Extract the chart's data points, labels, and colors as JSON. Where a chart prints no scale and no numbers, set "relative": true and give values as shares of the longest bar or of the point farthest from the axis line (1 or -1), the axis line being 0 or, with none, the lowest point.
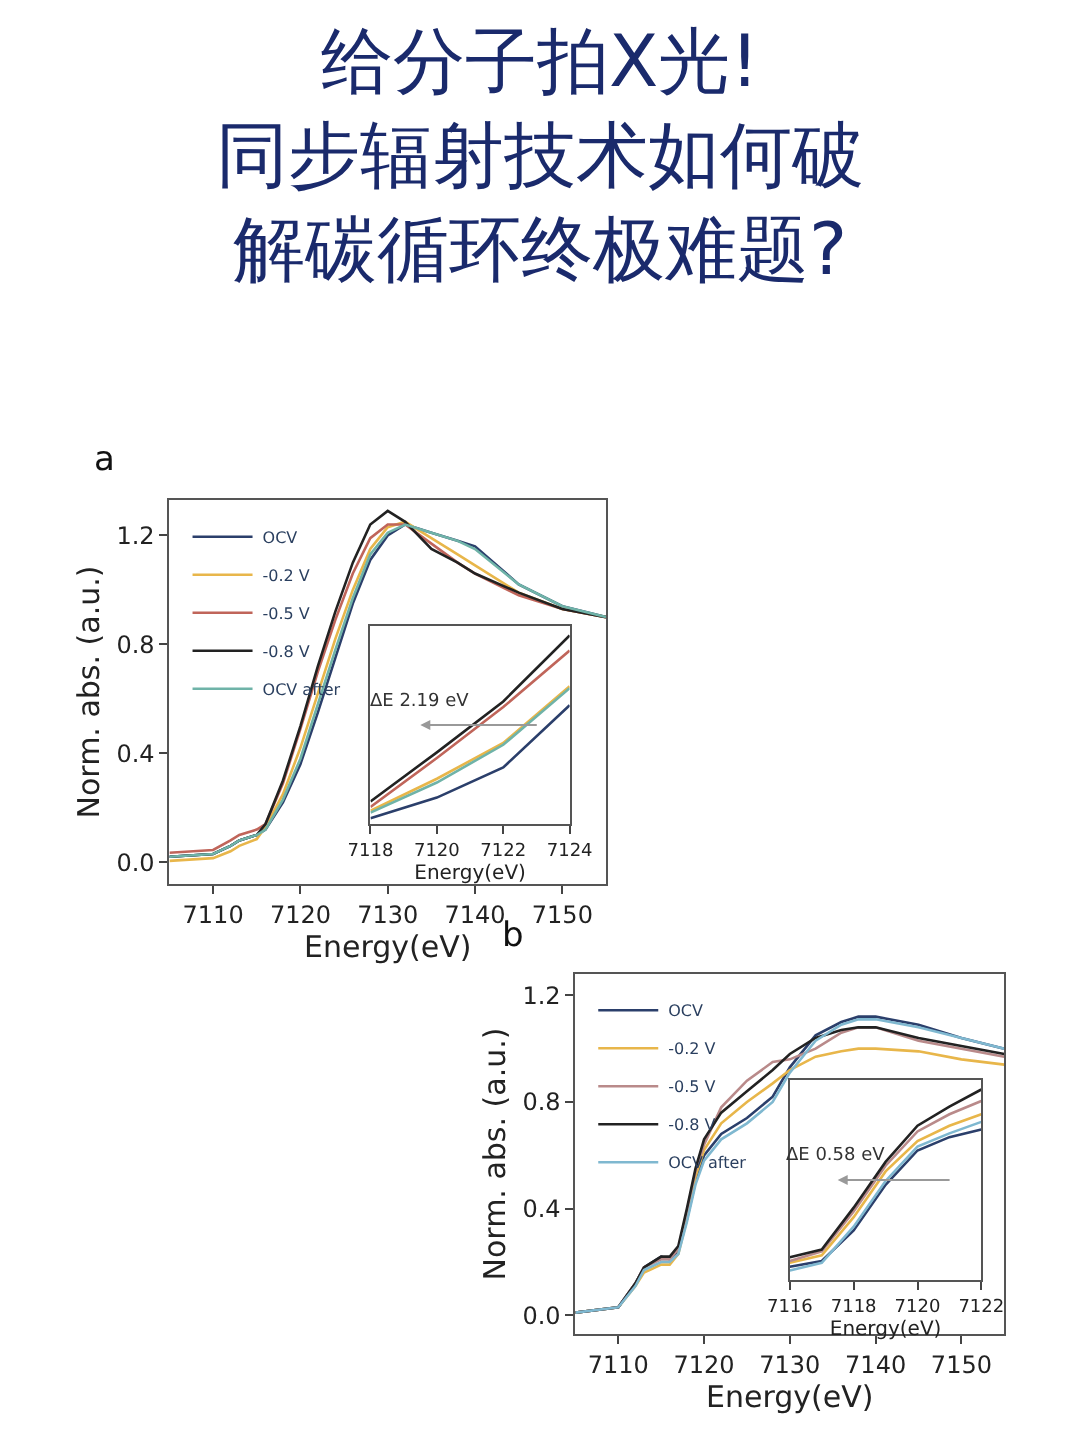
{
  "chart_data": [
    {
      "type": "line",
      "title": "给分子拍X光!",
      "subtitle": "同步辐射技术如何破解碳循环终极难题?",
      "xlabel": "Energy(eV)",
      "ylabel": "Norm. abs. (a.u.)",
      "annotations": [
        "a"
      ],
      "legend": "top left",
      "x": [
        7105,
        7110,
        7112,
        7113,
        7115,
        7116,
        7118,
        7120,
        7122,
        7124,
        7126,
        7128,
        7130,
        7132,
        7135,
        7138,
        7140,
        7145,
        7150,
        7155
      ],
      "xlim": [
        7105,
        7155
      ],
      "xticks": [
        7110,
        7120,
        7130,
        7140,
        7150
      ],
      "ylim": [
        -0.08,
        1.33
      ],
      "yticks": [
        {
          "value": 0,
          "label": "0.0"
        },
        0.4,
        0.8,
        1.2
      ],
      "series": [
        {
          "name": "OCV",
          "color": "#2b3f6b",
          "values": [
            0.02,
            0.03,
            0.06,
            0.08,
            0.1,
            0.12,
            0.22,
            0.36,
            0.55,
            0.75,
            0.95,
            1.11,
            1.2,
            1.24,
            1.21,
            1.18,
            1.16,
            1.02,
            0.94,
            0.9
          ]
        },
        {
          "name": "-0.2 V",
          "color": "#e8b64a",
          "values": [
            0.005,
            0.015,
            0.04,
            0.06,
            0.085,
            0.13,
            0.25,
            0.42,
            0.62,
            0.82,
            1.0,
            1.15,
            1.23,
            1.25,
            1.19,
            1.13,
            1.09,
            0.99,
            0.93,
            0.9
          ]
        },
        {
          "name": "-0.5 V",
          "color": "#c0655a",
          "values": [
            0.035,
            0.045,
            0.08,
            0.1,
            0.12,
            0.14,
            0.29,
            0.49,
            0.7,
            0.89,
            1.06,
            1.19,
            1.24,
            1.24,
            1.17,
            1.1,
            1.06,
            0.98,
            0.93,
            0.9
          ]
        },
        {
          "name": "-0.8 V",
          "color": "#222222",
          "values": [
            0.02,
            0.03,
            0.06,
            0.08,
            0.1,
            0.14,
            0.3,
            0.5,
            0.72,
            0.92,
            1.1,
            1.24,
            1.29,
            1.25,
            1.15,
            1.1,
            1.06,
            0.99,
            0.93,
            0.9
          ]
        },
        {
          "name": "OCV after",
          "color": "#6fb3a8",
          "values": [
            0.02,
            0.03,
            0.06,
            0.08,
            0.1,
            0.12,
            0.23,
            0.38,
            0.58,
            0.78,
            0.97,
            1.13,
            1.21,
            1.24,
            1.21,
            1.18,
            1.15,
            1.02,
            0.94,
            0.9
          ]
        }
      ]
    },
    {
      "type": "line",
      "xlabel": "Energy(eV)",
      "annotations": [
        "ΔE 2.19 eV"
      ],
      "relative": true,
      "tick_labels": "x",
      "x": [
        7118,
        7120,
        7122,
        7124
      ],
      "xlim": [
        7118,
        7124
      ],
      "xticks": [
        7118,
        7120,
        7122,
        7124
      ],
      "series": [
        {
          "color": "#2b3f6b",
          "values": [
            0.03,
            0.14,
            0.3,
            0.63
          ]
        },
        {
          "color": "#e8b64a",
          "values": [
            0.07,
            0.24,
            0.43,
            0.73
          ]
        },
        {
          "color": "#c0655a",
          "values": [
            0.09,
            0.35,
            0.62,
            0.92
          ]
        },
        {
          "color": "#222222",
          "values": [
            0.12,
            0.38,
            0.65,
            1.0
          ]
        },
        {
          "color": "#6fb3a8",
          "values": [
            0.06,
            0.22,
            0.42,
            0.72
          ]
        }
      ]
    },
    {
      "type": "line",
      "xlabel": "Energy(eV)",
      "ylabel": "Norm. abs. (a.u.)",
      "annotations": [
        "b"
      ],
      "legend": "top left",
      "x": [
        7105,
        7110,
        7112,
        7113,
        7115,
        7116,
        7117,
        7118,
        7119,
        7120,
        7122,
        7125,
        7128,
        7130,
        7133,
        7136,
        7138,
        7140,
        7145,
        7150,
        7155
      ],
      "xlim": [
        7105,
        7155
      ],
      "xticks": [
        7110,
        7120,
        7130,
        7140,
        7150
      ],
      "ylim": [
        -0.07,
        1.28
      ],
      "yticks": [
        {
          "value": 0,
          "label": "0.0"
        },
        0.4,
        0.8,
        1.2
      ],
      "series": [
        {
          "name": "OCV",
          "color": "#2b3f6b",
          "values": [
            0.01,
            0.03,
            0.12,
            0.18,
            0.22,
            0.21,
            0.24,
            0.36,
            0.5,
            0.6,
            0.68,
            0.74,
            0.82,
            0.93,
            1.05,
            1.1,
            1.12,
            1.12,
            1.09,
            1.04,
            1.0
          ]
        },
        {
          "name": "-0.2 V",
          "color": "#e8b64a",
          "values": [
            0.01,
            0.03,
            0.11,
            0.16,
            0.19,
            0.19,
            0.23,
            0.36,
            0.52,
            0.62,
            0.72,
            0.8,
            0.87,
            0.92,
            0.97,
            0.99,
            1.0,
            1.0,
            0.99,
            0.96,
            0.94
          ]
        },
        {
          "name": "-0.5 V",
          "color": "#b98a8a",
          "values": [
            0.01,
            0.03,
            0.12,
            0.18,
            0.21,
            0.21,
            0.25,
            0.39,
            0.54,
            0.64,
            0.78,
            0.88,
            0.95,
            0.96,
            1.0,
            1.06,
            1.08,
            1.08,
            1.03,
            1.0,
            0.97
          ]
        },
        {
          "name": "-0.8 V",
          "color": "#222222",
          "values": [
            0.01,
            0.03,
            0.12,
            0.18,
            0.22,
            0.22,
            0.26,
            0.4,
            0.55,
            0.66,
            0.76,
            0.84,
            0.92,
            0.98,
            1.04,
            1.07,
            1.08,
            1.08,
            1.04,
            1.01,
            0.98
          ]
        },
        {
          "name": "OCV after",
          "color": "#7fb8d0",
          "values": [
            0.01,
            0.03,
            0.11,
            0.17,
            0.2,
            0.2,
            0.23,
            0.35,
            0.49,
            0.58,
            0.66,
            0.72,
            0.8,
            0.91,
            1.03,
            1.09,
            1.11,
            1.11,
            1.08,
            1.04,
            1.0
          ]
        }
      ]
    },
    {
      "type": "line",
      "xlabel": "Energy(eV)",
      "annotations": [
        "ΔE 0.58 eV"
      ],
      "relative": true,
      "tick_labels": "x",
      "x": [
        7116,
        7117,
        7118,
        7119,
        7120,
        7121,
        7122
      ],
      "xlim": [
        7116,
        7122
      ],
      "xticks": [
        7116,
        7118,
        7120,
        7122
      ],
      "series": [
        {
          "color": "#2b3f6b",
          "values": [
            0.07,
            0.1,
            0.26,
            0.5,
            0.68,
            0.75,
            0.79
          ]
        },
        {
          "color": "#e8b64a",
          "values": [
            0.09,
            0.13,
            0.33,
            0.57,
            0.73,
            0.81,
            0.87
          ]
        },
        {
          "color": "#b98a8a",
          "values": [
            0.1,
            0.15,
            0.36,
            0.6,
            0.78,
            0.87,
            0.94
          ]
        },
        {
          "color": "#222222",
          "values": [
            0.12,
            0.16,
            0.38,
            0.62,
            0.81,
            0.91,
            1.0
          ]
        },
        {
          "color": "#7fb8d0",
          "values": [
            0.05,
            0.09,
            0.28,
            0.52,
            0.7,
            0.77,
            0.83
          ]
        }
      ]
    }
  ]
}
